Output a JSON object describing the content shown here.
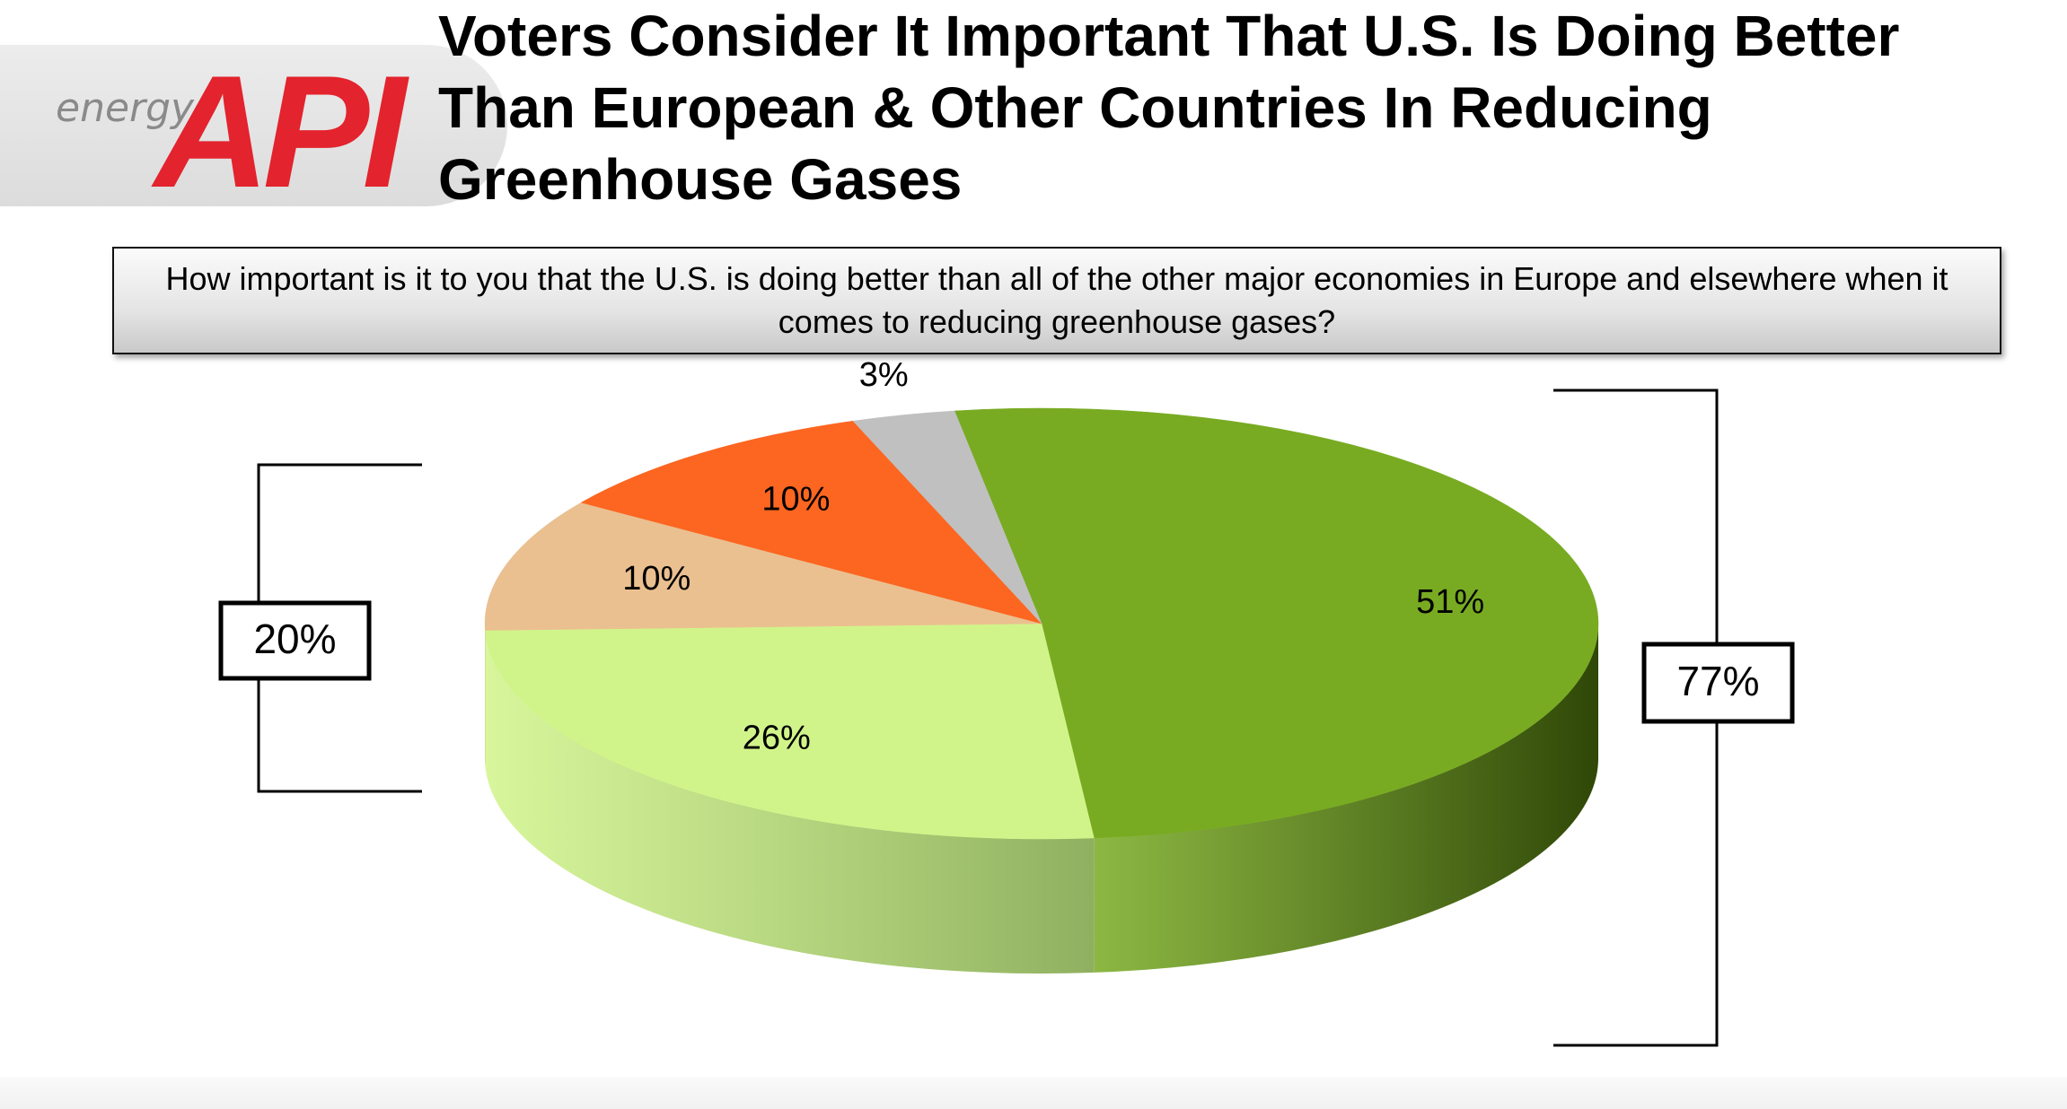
{
  "title": "Voters Consider It Important That U.S. Is Doing Better Than European & Other Countries In Reducing Greenhouse Gases",
  "logo": {
    "word": "energy",
    "mark": "API"
  },
  "question": "How important is it to you that the U.S. is doing better than all of the other major economies in Europe and elsewhere when it comes to reducing greenhouse gases?",
  "chart_data": {
    "type": "pie",
    "slices": [
      {
        "value": 51,
        "label": "51%",
        "color": "#78ab22",
        "side_color": "#2f4707"
      },
      {
        "value": 26,
        "label": "26%",
        "color": "#d1f48a",
        "side_color": "#8fb060"
      },
      {
        "value": 10,
        "label": "10%",
        "color": "#ebc090",
        "side_color": "#c99567"
      },
      {
        "value": 10,
        "label": "10%",
        "color": "#fc6621",
        "side_color": "#b84914"
      },
      {
        "value": 3,
        "label": "3%",
        "color": "#c0c0c0",
        "side_color": "#8a8a8a"
      }
    ],
    "brackets": [
      {
        "label": "77%"
      },
      {
        "label": "20%"
      }
    ]
  }
}
